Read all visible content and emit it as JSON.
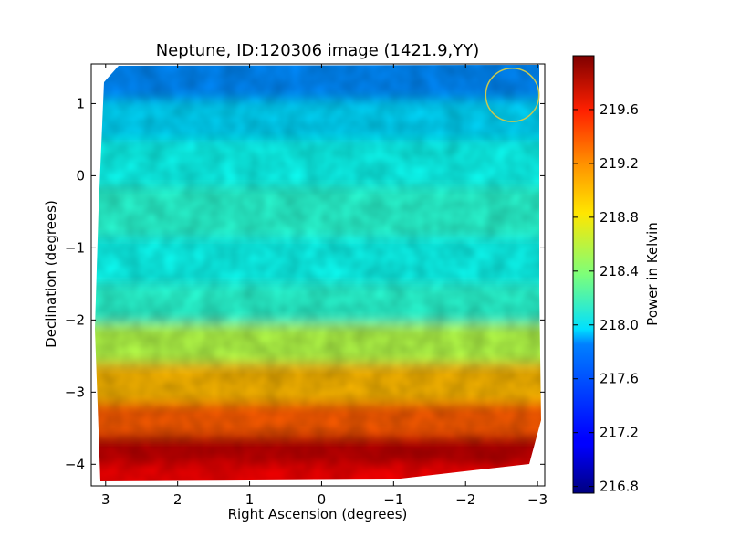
{
  "chart_data": {
    "type": "heatmap",
    "title": "Neptune, ID:120306 image (1421.9,YY)",
    "xlabel": "Right Ascension (degrees)",
    "ylabel": "Declination (degrees)",
    "xlim": [
      3.2,
      -3.1
    ],
    "ylim": [
      -4.3,
      1.55
    ],
    "x_ticks": [
      3,
      2,
      1,
      0,
      -1,
      -2,
      -3
    ],
    "x_tick_labels": [
      "3",
      "2",
      "1",
      "0",
      "−1",
      "−2",
      "−3"
    ],
    "y_ticks": [
      1,
      0,
      -1,
      -2,
      -3,
      -4
    ],
    "y_tick_labels": [
      "1",
      "0",
      "−1",
      "−2",
      "−3",
      "−4"
    ],
    "colorbar": {
      "label": "Power in Kelvin",
      "range": [
        216.75,
        220.0
      ],
      "ticks": [
        216.8,
        217.2,
        217.6,
        218.0,
        218.4,
        218.8,
        219.2,
        219.6
      ],
      "tick_labels": [
        "216.8",
        "217.2",
        "217.6",
        "218.0",
        "218.4",
        "218.8",
        "219.2",
        "219.6"
      ],
      "colormap": "jet"
    },
    "declination_bands": [
      {
        "dec": 1.3,
        "value": 217.6
      },
      {
        "dec": 0.8,
        "value": 217.85
      },
      {
        "dec": 0.2,
        "value": 218.0
      },
      {
        "dec": -0.5,
        "value": 218.1
      },
      {
        "dec": -1.2,
        "value": 218.0
      },
      {
        "dec": -1.8,
        "value": 218.1
      },
      {
        "dec": -2.3,
        "value": 218.55
      },
      {
        "dec": -2.9,
        "value": 219.0
      },
      {
        "dec": -3.4,
        "value": 219.3
      },
      {
        "dec": -3.8,
        "value": 219.8
      },
      {
        "dec": -4.2,
        "value": 219.6
      }
    ],
    "source_marker": {
      "ra": -2.65,
      "dec": 1.12,
      "radius_deg": 0.37,
      "color": "#c8c850"
    }
  }
}
